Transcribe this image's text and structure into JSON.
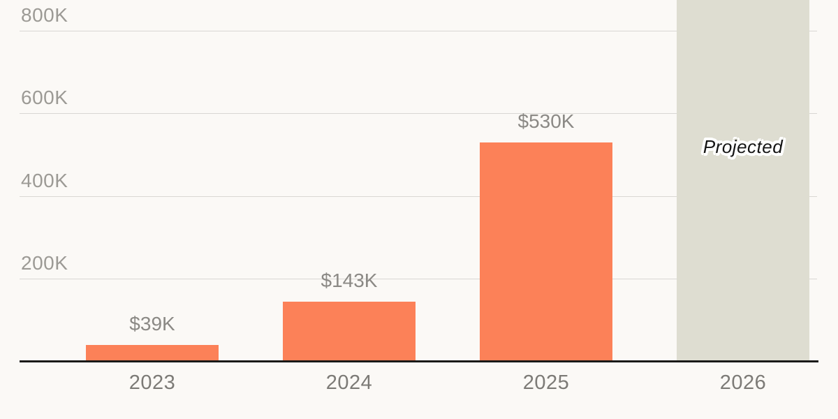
{
  "chart_data": {
    "type": "bar",
    "title": "",
    "xlabel": "",
    "ylabel": "",
    "legend": "none",
    "grid": "horizontal",
    "x_axis": {
      "categories": [
        "2023",
        "2024",
        "2025",
        "2026"
      ]
    },
    "y_axis": {
      "unit": "USD thousands",
      "visible_range_k": [
        0,
        880
      ],
      "ticks": [
        {
          "label": "800K",
          "value_k": 800
        },
        {
          "label": "600K",
          "value_k": 600
        },
        {
          "label": "400K",
          "value_k": 400
        },
        {
          "label": "200K",
          "value_k": 200
        }
      ]
    },
    "bars": [
      {
        "category": "2023",
        "value_k": 39,
        "value_label": "$39K",
        "projected": false
      },
      {
        "category": "2024",
        "value_k": 143,
        "value_label": "$143K",
        "projected": false
      },
      {
        "category": "2025",
        "value_k": 530,
        "value_label": "$530K",
        "projected": false
      },
      {
        "category": "2026",
        "value_k": null,
        "value_label": "Projected",
        "projected": true
      }
    ],
    "annotations": [
      {
        "text": "Projected",
        "target_category": "2026",
        "style": "italic-black-white-halo"
      }
    ],
    "notes": "2026 projected bar extends beyond the top edge of the frame"
  },
  "colors": {
    "background": "#FBF9F6",
    "bar_actual": "#FC8158",
    "bar_projected": "#DEDDD1",
    "gridline": "#D9D7D3",
    "axis_line": "#1A1A18",
    "y_tick_text": "#9C9A95",
    "value_label_text": "#8B8985",
    "x_tick_text": "#7C7A76",
    "projected_text": "#141414",
    "projected_halo": "#FFFFFF"
  }
}
